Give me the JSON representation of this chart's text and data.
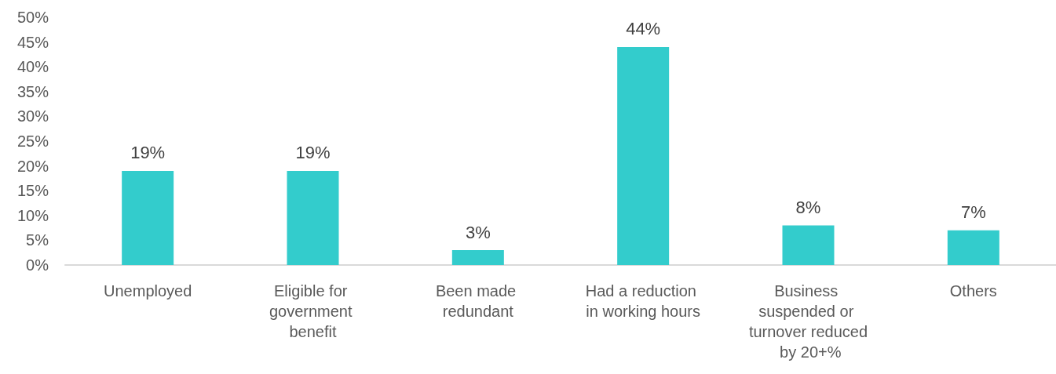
{
  "chart_data": {
    "type": "bar",
    "categories": [
      "Unemployed",
      "Eligible for government benefit",
      "Been made redundant",
      "Had a reduction in working hours",
      "Business suspended or turnover reduced by 20+%",
      "Others"
    ],
    "values": [
      19,
      19,
      3,
      44,
      8,
      7
    ],
    "value_labels": [
      "19%",
      "19%",
      "3%",
      "44%",
      "8%",
      "7%"
    ],
    "color": "#33cccc",
    "ylim": [
      0,
      50
    ],
    "yticks": [
      {
        "value": 0,
        "label": "0%"
      },
      {
        "value": 5,
        "label": "5%"
      },
      {
        "value": 10,
        "label": "10%"
      },
      {
        "value": 15,
        "label": "15%"
      },
      {
        "value": 20,
        "label": "20%"
      },
      {
        "value": 25,
        "label": "25%"
      },
      {
        "value": 30,
        "label": "30%"
      },
      {
        "value": 35,
        "label": "35%"
      },
      {
        "value": 40,
        "label": "40%"
      },
      {
        "value": 45,
        "label": "45%"
      },
      {
        "value": 50,
        "label": "50%"
      }
    ],
    "grid": false
  }
}
